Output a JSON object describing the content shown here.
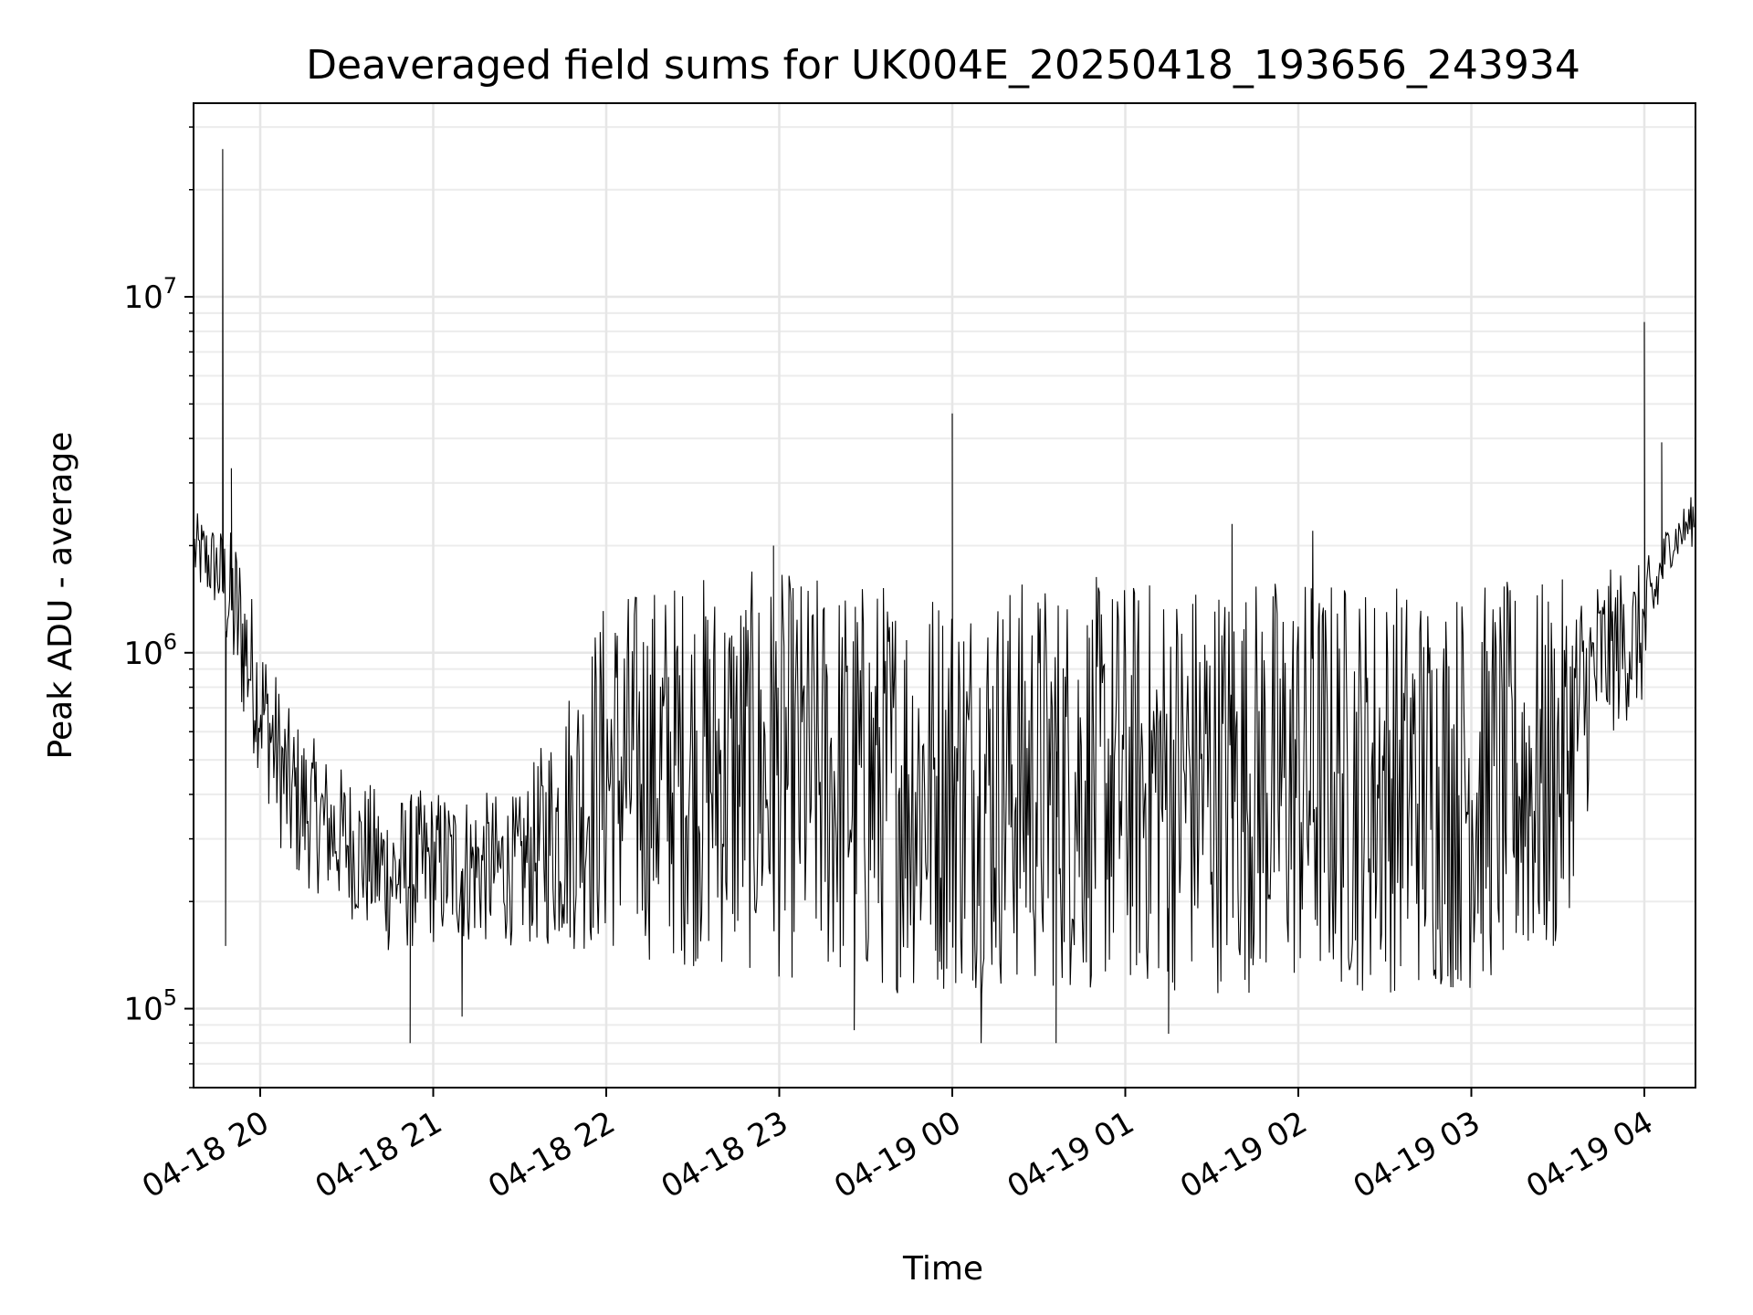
{
  "chart_data": {
    "type": "line",
    "title": "Deaveraged field sums for UK004E_20250418_193656_243934",
    "xlabel": "Time",
    "ylabel": "Peak ADU - average",
    "yscale": "log",
    "ylim": [
      60000,
      35000000
    ],
    "xlim": [
      "2025-04-18 19:36:56",
      "2025-04-19 04:17:00"
    ],
    "grid": true,
    "line_color": "#000000",
    "x_ticks": [
      "04-18 20",
      "04-18 21",
      "04-18 22",
      "04-18 23",
      "04-19 00",
      "04-19 01",
      "04-19 02",
      "04-19 03",
      "04-19 04"
    ],
    "y_ticks": [
      {
        "base": "10",
        "exp": "5",
        "value": 100000
      },
      {
        "base": "10",
        "exp": "6",
        "value": 1000000
      },
      {
        "base": "10",
        "exp": "7",
        "value": 10000000
      }
    ],
    "envelope": [
      {
        "t": "2025-04-18 19:37",
        "low": 1500000,
        "high": 2500000
      },
      {
        "t": "2025-04-18 19:45",
        "low": 1300000,
        "high": 2300000
      },
      {
        "t": "2025-04-18 19:52",
        "low": 700000,
        "high": 2200000
      },
      {
        "t": "2025-04-18 20:00",
        "low": 450000,
        "high": 1200000
      },
      {
        "t": "2025-04-18 20:10",
        "low": 230000,
        "high": 700000
      },
      {
        "t": "2025-04-18 20:25",
        "low": 200000,
        "high": 500000
      },
      {
        "t": "2025-04-18 20:45",
        "low": 140000,
        "high": 400000
      },
      {
        "t": "2025-04-18 21:00",
        "low": 150000,
        "high": 420000
      },
      {
        "t": "2025-04-18 21:30",
        "low": 150000,
        "high": 400000
      },
      {
        "t": "2025-04-18 22:00",
        "low": 140000,
        "high": 1500000
      },
      {
        "t": "2025-04-18 22:30",
        "low": 130000,
        "high": 1700000
      },
      {
        "t": "2025-04-18 23:00",
        "low": 120000,
        "high": 1700000
      },
      {
        "t": "2025-04-18 23:30",
        "low": 110000,
        "high": 1650000
      },
      {
        "t": "2025-04-19 00:00",
        "low": 110000,
        "high": 1650000
      },
      {
        "t": "2025-04-19 00:30",
        "low": 110000,
        "high": 1650000
      },
      {
        "t": "2025-04-19 01:00",
        "low": 110000,
        "high": 1650000
      },
      {
        "t": "2025-04-19 01:30",
        "low": 110000,
        "high": 1700000
      },
      {
        "t": "2025-04-19 02:00",
        "low": 110000,
        "high": 1700000
      },
      {
        "t": "2025-04-19 02:30",
        "low": 110000,
        "high": 1650000
      },
      {
        "t": "2025-04-19 03:00",
        "low": 110000,
        "high": 1600000
      },
      {
        "t": "2025-04-19 03:30",
        "low": 130000,
        "high": 1600000
      },
      {
        "t": "2025-04-19 03:45",
        "low": 550000,
        "high": 1700000
      },
      {
        "t": "2025-04-19 04:00",
        "low": 700000,
        "high": 1800000
      },
      {
        "t": "2025-04-19 04:08",
        "low": 1700000,
        "high": 2300000
      },
      {
        "t": "2025-04-19 04:17",
        "low": 2000000,
        "high": 2800000
      }
    ],
    "spikes": [
      {
        "t": "2025-04-18 19:47",
        "value": 26000000
      },
      {
        "t": "2025-04-18 19:48",
        "value": 150000
      },
      {
        "t": "2025-04-18 19:50",
        "value": 3300000
      },
      {
        "t": "2025-04-18 20:52",
        "value": 80000
      },
      {
        "t": "2025-04-18 21:10",
        "value": 95000
      },
      {
        "t": "2025-04-18 22:58",
        "value": 2000000
      },
      {
        "t": "2025-04-18 23:26",
        "value": 87000
      },
      {
        "t": "2025-04-19 00:00",
        "value": 4700000
      },
      {
        "t": "2025-04-19 00:10",
        "value": 80000
      },
      {
        "t": "2025-04-19 00:36",
        "value": 80000
      },
      {
        "t": "2025-04-19 01:15",
        "value": 85000
      },
      {
        "t": "2025-04-19 01:37",
        "value": 2300000
      },
      {
        "t": "2025-04-19 02:05",
        "value": 2200000
      },
      {
        "t": "2025-04-19 04:00",
        "value": 8500000
      },
      {
        "t": "2025-04-19 04:06",
        "value": 3900000
      }
    ]
  }
}
